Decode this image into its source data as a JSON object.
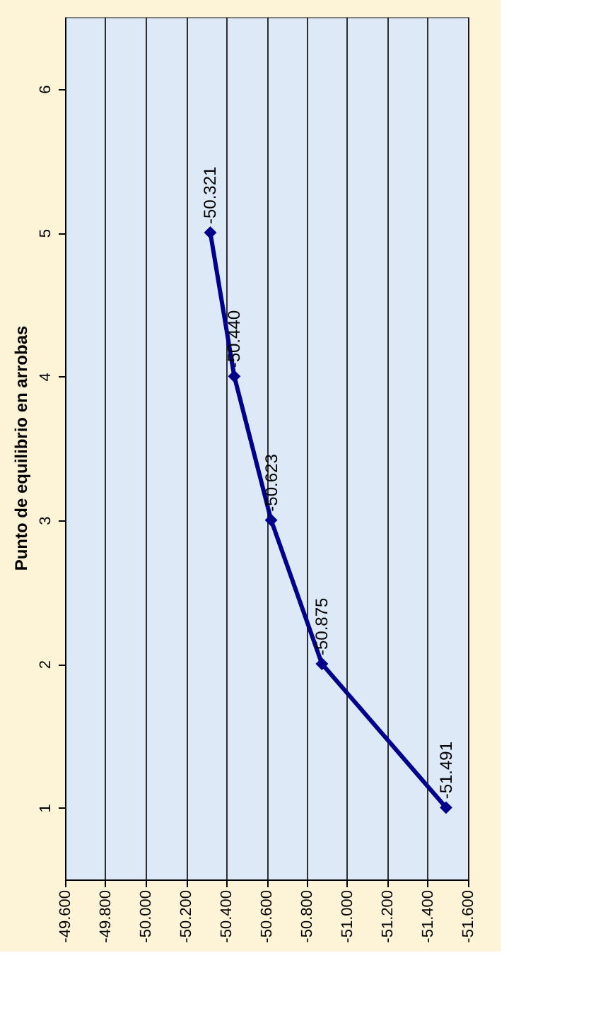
{
  "chart_data": {
    "type": "line",
    "title": "Punto de equilibrio en arrobas",
    "orientation": "horizontal",
    "categories": [
      "6",
      "5",
      "4",
      "3",
      "2",
      "1"
    ],
    "series": [
      {
        "color": "#00008b",
        "values": [
          null,
          -50.321,
          -50.44,
          -50.623,
          -50.875,
          -51.491
        ],
        "value_labels": [
          null,
          "-50.321",
          "-50.440",
          "-50.623",
          "-50.875",
          "-51.491"
        ]
      }
    ],
    "xlim": [
      -49.6,
      -51.6
    ],
    "xticks": [
      {
        "value": -49.6,
        "label": "-49.600"
      },
      {
        "value": -49.8,
        "label": "-49.800"
      },
      {
        "value": -50.0,
        "label": "-50.000"
      },
      {
        "value": -50.2,
        "label": "-50.200"
      },
      {
        "value": -50.4,
        "label": "-50.400"
      },
      {
        "value": -50.6,
        "label": "-50.600"
      },
      {
        "value": -50.8,
        "label": "-50.800"
      },
      {
        "value": -51.0,
        "label": "-51.000"
      },
      {
        "value": -51.2,
        "label": "-51.200"
      },
      {
        "value": -51.4,
        "label": "-51.400"
      },
      {
        "value": -51.6,
        "label": "-51.600"
      }
    ],
    "grid": "x",
    "marker": "diamond",
    "line_style": "solid"
  }
}
